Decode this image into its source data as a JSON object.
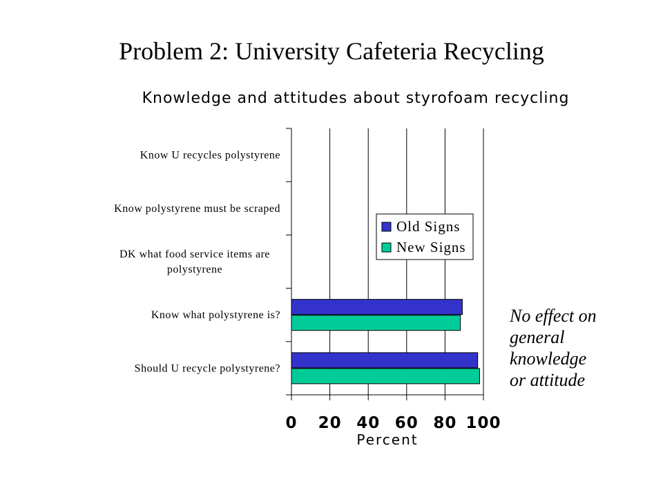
{
  "slide": {
    "title": "Problem 2: University Cafeteria Recycling"
  },
  "note": {
    "lines": [
      "No effect on",
      "general",
      "knowledge",
      "or attitude"
    ]
  },
  "colors": {
    "old_signs": "#3333cc",
    "new_signs": "#00cc99",
    "grid": "#000000"
  },
  "chart_data": {
    "type": "bar",
    "orientation": "horizontal",
    "title": "Knowledge and attitudes about styrofoam recycling",
    "xlabel": "Percent",
    "ylabel": "",
    "xlim": [
      0,
      100
    ],
    "x_ticks": [
      0,
      20,
      40,
      60,
      80,
      100
    ],
    "grid": true,
    "legend_position": "right-center",
    "categories": [
      [
        "Know U recycles polystyrene"
      ],
      [
        "Know polystyrene must be scraped"
      ],
      [
        "DK what food service items are",
        "polystyrene"
      ],
      [
        "Know what polystyrene is?"
      ],
      [
        "Should U recycle polystyrene?"
      ]
    ],
    "series": [
      {
        "name": "Old Signs",
        "values": [
          null,
          null,
          null,
          89,
          97
        ]
      },
      {
        "name": "New Signs",
        "values": [
          null,
          null,
          null,
          88,
          98
        ]
      }
    ]
  }
}
